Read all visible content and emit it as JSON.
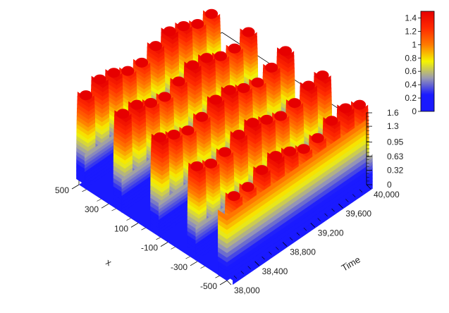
{
  "chart_data": {
    "type": "surface3d",
    "description_of_data": "periodic pulse surface over x and Time",
    "xlabel": "Time",
    "ylabel": "x",
    "zlabel": "",
    "time_range": [
      38000,
      40000
    ],
    "x_range": [
      -500,
      500
    ],
    "z_range": [
      0,
      1.6
    ],
    "time_ticks": [
      "38,000",
      "38,400",
      "38,800",
      "39,200",
      "39,600",
      "40,000"
    ],
    "x_ticks": [
      "500",
      "300",
      "100",
      "-100",
      "-300",
      "-500"
    ],
    "z_ticks": [
      "1.6",
      "1.3",
      "0.95",
      "0.63",
      "0.32",
      "0"
    ],
    "pulse_rows_x": [
      -500,
      -250,
      0,
      250,
      500
    ],
    "pulses_per_row": 10,
    "pulse_peak": 1.5,
    "pulse_width_fraction": 0.55,
    "colorbar": {
      "labels": [
        "1.4",
        "1.2",
        "1",
        "0.8",
        "0.6",
        "0.4",
        "0.2",
        "0"
      ],
      "stops": [
        "#1a1aff",
        "#1a1aff",
        "#9a9ab2",
        "#f5f500",
        "#ff7a00",
        "#ff2a00",
        "#e60000"
      ],
      "range": [
        0,
        1.5
      ]
    },
    "grid": false,
    "legend": "colorbar top-right"
  }
}
